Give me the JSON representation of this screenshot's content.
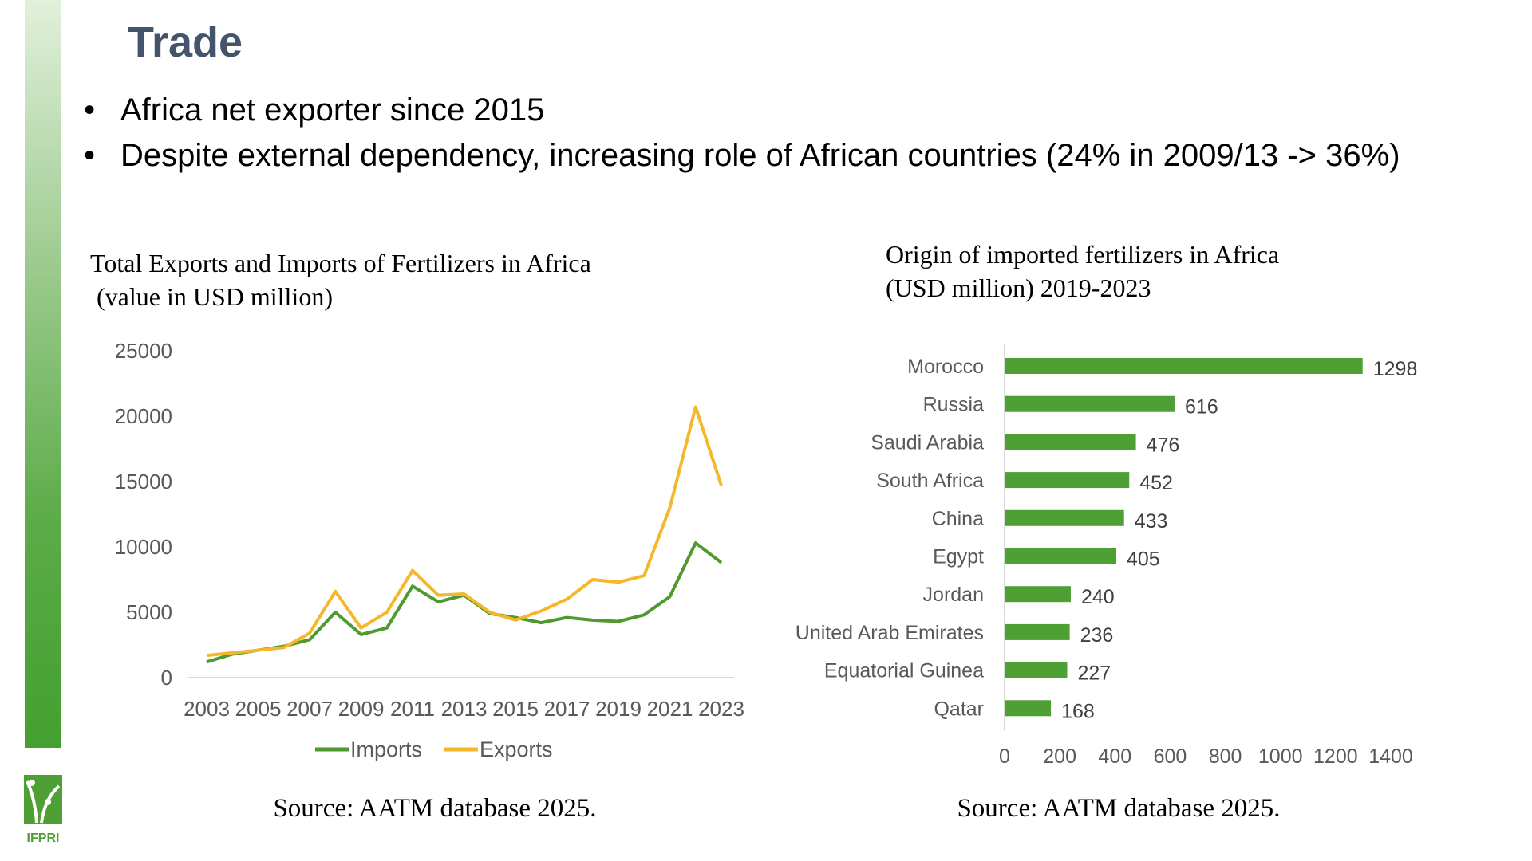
{
  "slide": {
    "title": "Trade",
    "bullets": [
      "Africa net exporter since 2015",
      "Despite external dependency, increasing role of African countries (24%  in 2009/13 -> 36%)"
    ],
    "logo_text": "IFPRI",
    "accent_color": "#43a02f",
    "title_color": "#44546a"
  },
  "left": {
    "title_line1": "Total Exports and Imports of Fertilizers in Africa",
    "title_line2": " (value in USD million)",
    "source": "Source: AATM database 2025."
  },
  "right": {
    "title_line1": "Origin of imported fertilizers in Africa",
    "title_line2": "(USD million) 2019-2023",
    "source": "Source: AATM database 2025."
  },
  "chart_data": [
    {
      "type": "line",
      "x": [
        2003,
        2004,
        2005,
        2006,
        2007,
        2008,
        2009,
        2010,
        2011,
        2012,
        2013,
        2014,
        2015,
        2016,
        2017,
        2018,
        2019,
        2020,
        2021,
        2022,
        2023
      ],
      "xtick_labels": [
        "2003",
        "2005",
        "2007",
        "2009",
        "2011",
        "2013",
        "2015",
        "2017",
        "2019",
        "2021",
        "2023"
      ],
      "ytick_labels": [
        "0",
        "5000",
        "10000",
        "15000",
        "20000",
        "25000"
      ],
      "ylim": [
        0,
        25000
      ],
      "legend_placement": "bottom",
      "series": [
        {
          "name": "Imports",
          "color": "#4e9a2f",
          "values": [
            1200,
            1800,
            2100,
            2400,
            2900,
            5000,
            3300,
            3800,
            7000,
            5800,
            6300,
            4900,
            4600,
            4200,
            4600,
            4400,
            4300,
            4800,
            6200,
            10300,
            8800
          ]
        },
        {
          "name": "Exports",
          "color": "#f5b72b",
          "values": [
            1700,
            1900,
            2100,
            2300,
            3400,
            6600,
            3800,
            5000,
            8200,
            6300,
            6400,
            5000,
            4400,
            5100,
            6000,
            7500,
            7300,
            7800,
            13000,
            20700,
            14700
          ]
        }
      ]
    },
    {
      "type": "bar",
      "orientation": "horizontal",
      "categories": [
        "Morocco",
        "Russia",
        "Saudi Arabia",
        "South Africa",
        "China",
        "Egypt",
        "Jordan",
        "United Arab Emirates",
        "Equatorial Guinea",
        "Qatar"
      ],
      "values": [
        1298,
        616,
        476,
        452,
        433,
        405,
        240,
        236,
        227,
        168
      ],
      "value_labels": [
        "1298",
        "616",
        "476",
        "452",
        "433",
        "405",
        "240",
        "236",
        "227",
        "168"
      ],
      "xtick_labels": [
        "0",
        "200",
        "400",
        "600",
        "800",
        "1000",
        "1200",
        "1400"
      ],
      "xlim": [
        0,
        1400
      ],
      "color": "#4e9f34"
    }
  ]
}
